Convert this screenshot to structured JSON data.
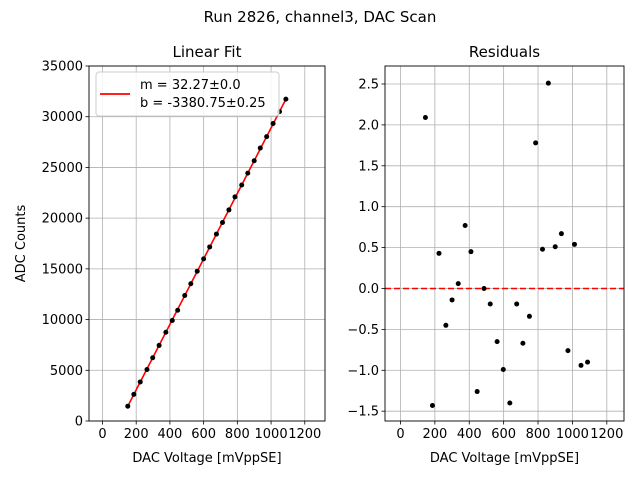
{
  "figure": {
    "suptitle": "Run 2826, channel3, DAC Scan"
  },
  "chart_data": [
    {
      "type": "scatter",
      "title": "Linear Fit",
      "xlabel": "DAC Voltage [mVppSE]",
      "ylabel": "ADC Counts",
      "xlim": [
        -80,
        1320
      ],
      "ylim": [
        0,
        35000
      ],
      "xticks": [
        0,
        200,
        400,
        600,
        800,
        1000,
        1200
      ],
      "xtick_labels": [
        "0",
        "200",
        "400",
        "600",
        "800",
        "1000",
        "1200"
      ],
      "yticks": [
        0,
        5000,
        10000,
        15000,
        20000,
        25000,
        30000,
        35000
      ],
      "ytick_labels": [
        "0",
        "5000",
        "10000",
        "15000",
        "20000",
        "25000",
        "30000",
        "35000"
      ],
      "grid": true,
      "legend": {
        "position": "top-left",
        "entries": [
          "m = 32.27±0.0",
          "b = -3380.75±0.25"
        ]
      },
      "fit_line": {
        "color": "#ff0000",
        "slope": 32.27,
        "intercept": -3380.75,
        "x_range": [
          150,
          1090
        ]
      },
      "points": {
        "color": "#000000",
        "x": [
          150,
          186,
          224,
          264,
          298,
          336,
          376,
          414,
          446,
          488,
          524,
          562,
          600,
          636,
          676,
          712,
          750,
          786,
          826,
          862,
          900,
          936,
          974,
          1012,
          1050,
          1088
        ],
        "y": [
          1460,
          2630,
          3850,
          5080,
          6240,
          7450,
          8750,
          9910,
          10920,
          12370,
          13530,
          14770,
          15980,
          17160,
          18430,
          19570,
          20810,
          22100,
          23270,
          24440,
          25660,
          26910,
          28040,
          29330,
          30500,
          31730
        ]
      }
    },
    {
      "type": "scatter",
      "title": "Residuals",
      "xlabel": "DAC Voltage [mVppSE]",
      "ylabel": "",
      "xlim": [
        -90,
        1300
      ],
      "ylim": [
        -1.62,
        2.72
      ],
      "xticks": [
        0,
        200,
        400,
        600,
        800,
        1000,
        1200
      ],
      "xtick_labels": [
        "0",
        "200",
        "400",
        "600",
        "800",
        "1000",
        "1200"
      ],
      "yticks": [
        -1.5,
        -1.0,
        -0.5,
        0.0,
        0.5,
        1.0,
        1.5,
        2.0,
        2.5
      ],
      "ytick_labels": [
        "−1.5",
        "−1.0",
        "−0.5",
        "0.0",
        "0.5",
        "1.0",
        "1.5",
        "2.0",
        "2.5"
      ],
      "grid": true,
      "zero_line": {
        "y": 0,
        "color": "#ff0000",
        "style": "dashed"
      },
      "points": {
        "color": "#000000",
        "x": [
          145,
          186,
          224,
          264,
          300,
          336,
          376,
          410,
          446,
          486,
          522,
          562,
          598,
          636,
          676,
          712,
          750,
          786,
          826,
          860,
          900,
          936,
          974,
          1012,
          1050,
          1088
        ],
        "y": [
          2.09,
          -1.43,
          0.43,
          -0.45,
          -0.14,
          0.06,
          0.77,
          0.45,
          -1.26,
          0.0,
          -0.19,
          -0.65,
          -0.99,
          -1.4,
          -0.19,
          -0.67,
          -0.34,
          1.78,
          0.48,
          2.51,
          0.51,
          0.67,
          -0.76,
          0.54,
          -0.94,
          -0.9
        ]
      }
    }
  ]
}
